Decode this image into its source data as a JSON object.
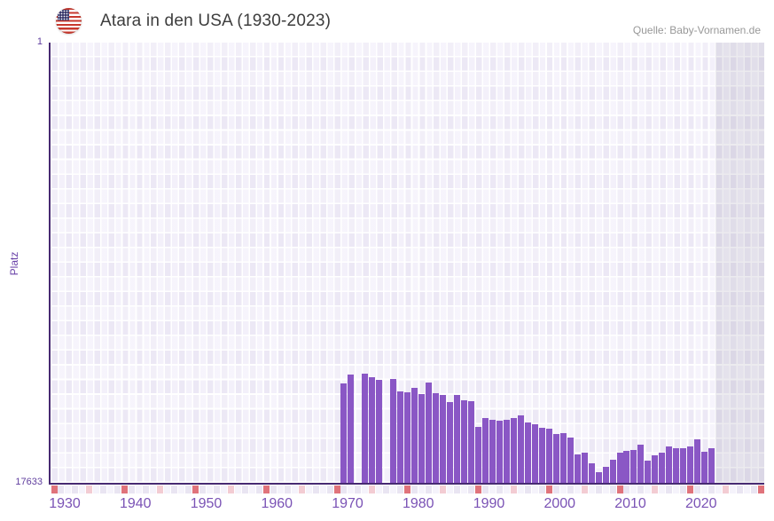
{
  "header": {
    "title": "Atara in den USA (1930-2023)",
    "source": "Quelle: Baby-Vornamen.de",
    "flag_icon": "us-flag-round"
  },
  "chart_data": {
    "type": "bar",
    "title": "Atara in den USA (1930-2023)",
    "xlabel": "",
    "ylabel": "Platz",
    "y_axis": {
      "top_label": "1",
      "bottom_label": "17633",
      "min": 1,
      "max": 17633,
      "inverted": true
    },
    "x_axis": {
      "start": 1930,
      "end": 2030,
      "ticks": [
        1930,
        1940,
        1950,
        1960,
        1970,
        1980,
        1990,
        2000,
        2010,
        2020
      ],
      "last_data_year": 2023,
      "decade_marker_years": [
        1930,
        1940,
        1950,
        1960,
        1970,
        1980,
        1990,
        2000,
        2010,
        2020,
        2030
      ],
      "half_decade_marker_years": [
        1935,
        1945,
        1955,
        1965,
        1975,
        1985,
        1995,
        2005,
        2015,
        2025
      ]
    },
    "series": [
      {
        "name": "Platz",
        "points": [
          [
            1971,
            13641
          ],
          [
            1972,
            13286
          ],
          [
            1974,
            13261
          ],
          [
            1975,
            13414
          ],
          [
            1976,
            13521
          ],
          [
            1978,
            13479
          ],
          [
            1979,
            13961
          ],
          [
            1980,
            13996
          ],
          [
            1981,
            13818
          ],
          [
            1982,
            14088
          ],
          [
            1983,
            13616
          ],
          [
            1984,
            14031
          ],
          [
            1985,
            14113
          ],
          [
            1986,
            14397
          ],
          [
            1987,
            14113
          ],
          [
            1988,
            14316
          ],
          [
            1989,
            14351
          ],
          [
            1990,
            15382
          ],
          [
            1991,
            15027
          ],
          [
            1992,
            15126
          ],
          [
            1993,
            15144
          ],
          [
            1994,
            15119
          ],
          [
            1995,
            15037
          ],
          [
            1996,
            14931
          ],
          [
            1997,
            15215
          ],
          [
            1998,
            15286
          ],
          [
            1999,
            15428
          ],
          [
            2000,
            15475
          ],
          [
            2001,
            15677
          ],
          [
            2002,
            15631
          ],
          [
            2003,
            15809
          ],
          [
            2004,
            16495
          ],
          [
            2005,
            16424
          ],
          [
            2006,
            16851
          ],
          [
            2007,
            17206
          ],
          [
            2008,
            16993
          ],
          [
            2009,
            16698
          ],
          [
            2010,
            16424
          ],
          [
            2011,
            16342
          ],
          [
            2012,
            16317
          ],
          [
            2013,
            16104
          ],
          [
            2014,
            16733
          ],
          [
            2015,
            16520
          ],
          [
            2016,
            16413
          ],
          [
            2017,
            16175
          ],
          [
            2018,
            16235
          ],
          [
            2019,
            16235
          ],
          [
            2020,
            16186
          ],
          [
            2021,
            15890
          ],
          [
            2022,
            16388
          ],
          [
            2023,
            16246
          ]
        ]
      }
    ],
    "legend": null,
    "grid": true
  },
  "colors": {
    "bar": "#8a57c5",
    "axis": "#472a72",
    "x_tick_label": "#7a52b5",
    "y_tick_label": "#5f3d9e",
    "strip_decade": "#e0737b",
    "strip_half_decade": "#f3ccd3",
    "strip_odd": "#e9e5f2",
    "strip_even": "#f5f3fb",
    "plot_background": "#ede9f6",
    "future_shade": "rgba(109,97,135,0.13)",
    "title_text": "#3d3d3d",
    "source_text": "#989898"
  }
}
